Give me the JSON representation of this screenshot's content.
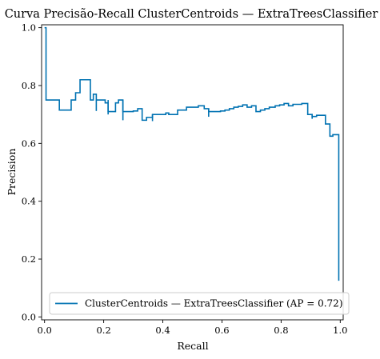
{
  "chart_data": {
    "type": "line",
    "title": "Curva Precisão-Recall ClusterCentroids — ExtraTreesClassifier",
    "xlabel": "Recall",
    "ylabel": "Precision",
    "xlim": [
      -0.01,
      1.01
    ],
    "ylim": [
      -0.01,
      1.01
    ],
    "xticks": [
      "0.0",
      "0.2",
      "0.4",
      "0.6",
      "0.8",
      "1.0"
    ],
    "yticks": [
      "0.0",
      "0.2",
      "0.4",
      "0.6",
      "0.8",
      "1.0"
    ],
    "grid": false,
    "legend_position": "lower-right",
    "series": [
      {
        "name": "ClusterCentroids — ExtraTreesClassifier (AP = 0.72)",
        "color": "#0072b2",
        "step": "post",
        "x": [
          0.0,
          0.005,
          0.005,
          0.05,
          0.05,
          0.09,
          0.09,
          0.105,
          0.105,
          0.12,
          0.12,
          0.155,
          0.155,
          0.165,
          0.165,
          0.175,
          0.175,
          0.205,
          0.205,
          0.215,
          0.215,
          0.24,
          0.24,
          0.25,
          0.25,
          0.265,
          0.265,
          0.3,
          0.3,
          0.315,
          0.315,
          0.33,
          0.33,
          0.345,
          0.345,
          0.365,
          0.365,
          0.38,
          0.38,
          0.41,
          0.41,
          0.42,
          0.42,
          0.45,
          0.45,
          0.48,
          0.48,
          0.5,
          0.5,
          0.52,
          0.52,
          0.54,
          0.54,
          0.555,
          0.555,
          0.595,
          0.595,
          0.61,
          0.61,
          0.625,
          0.625,
          0.64,
          0.64,
          0.655,
          0.655,
          0.67,
          0.67,
          0.685,
          0.685,
          0.7,
          0.7,
          0.715,
          0.715,
          0.73,
          0.73,
          0.745,
          0.745,
          0.76,
          0.76,
          0.78,
          0.78,
          0.795,
          0.795,
          0.81,
          0.81,
          0.825,
          0.825,
          0.84,
          0.84,
          0.855,
          0.855,
          0.87,
          0.87,
          0.89,
          0.89,
          0.905,
          0.905,
          0.92,
          0.92,
          0.935,
          0.935,
          0.95,
          0.95,
          0.965,
          0.965,
          0.975,
          0.975,
          0.995,
          0.995
        ],
        "y": [
          1.0,
          1.0,
          0.75,
          0.75,
          0.715,
          0.715,
          0.75,
          0.75,
          0.775,
          0.775,
          0.82,
          0.82,
          0.75,
          0.75,
          0.77,
          0.77,
          0.75,
          0.75,
          0.74,
          0.74,
          0.71,
          0.71,
          0.74,
          0.74,
          0.75,
          0.75,
          0.71,
          0.71,
          0.712,
          0.712,
          0.72,
          0.72,
          0.68,
          0.68,
          0.69,
          0.69,
          0.7,
          0.7,
          0.7,
          0.7,
          0.705,
          0.705,
          0.7,
          0.7,
          0.715,
          0.715,
          0.725,
          0.725,
          0.725,
          0.725,
          0.73,
          0.73,
          0.72,
          0.72,
          0.71,
          0.71,
          0.712,
          0.712,
          0.715,
          0.715,
          0.72,
          0.72,
          0.725,
          0.725,
          0.728,
          0.728,
          0.733,
          0.733,
          0.725,
          0.725,
          0.73,
          0.73,
          0.71,
          0.71,
          0.715,
          0.715,
          0.72,
          0.72,
          0.725,
          0.725,
          0.73,
          0.73,
          0.733,
          0.733,
          0.738,
          0.738,
          0.73,
          0.73,
          0.735,
          0.735,
          0.735,
          0.735,
          0.738,
          0.738,
          0.7,
          0.7,
          0.693,
          0.693,
          0.697,
          0.697,
          0.697,
          0.697,
          0.667,
          0.667,
          0.625,
          0.625,
          0.63,
          0.63,
          0.125
        ],
        "dips": [
          {
            "x": 0.175,
            "top": 0.75,
            "bottom": 0.712
          },
          {
            "x": 0.215,
            "top": 0.75,
            "bottom": 0.7
          },
          {
            "x": 0.265,
            "top": 0.75,
            "bottom": 0.68
          },
          {
            "x": 0.365,
            "top": 0.7,
            "bottom": 0.677
          },
          {
            "x": 0.555,
            "top": 0.72,
            "bottom": 0.692
          },
          {
            "x": 0.905,
            "top": 0.7,
            "bottom": 0.685
          }
        ]
      }
    ]
  }
}
